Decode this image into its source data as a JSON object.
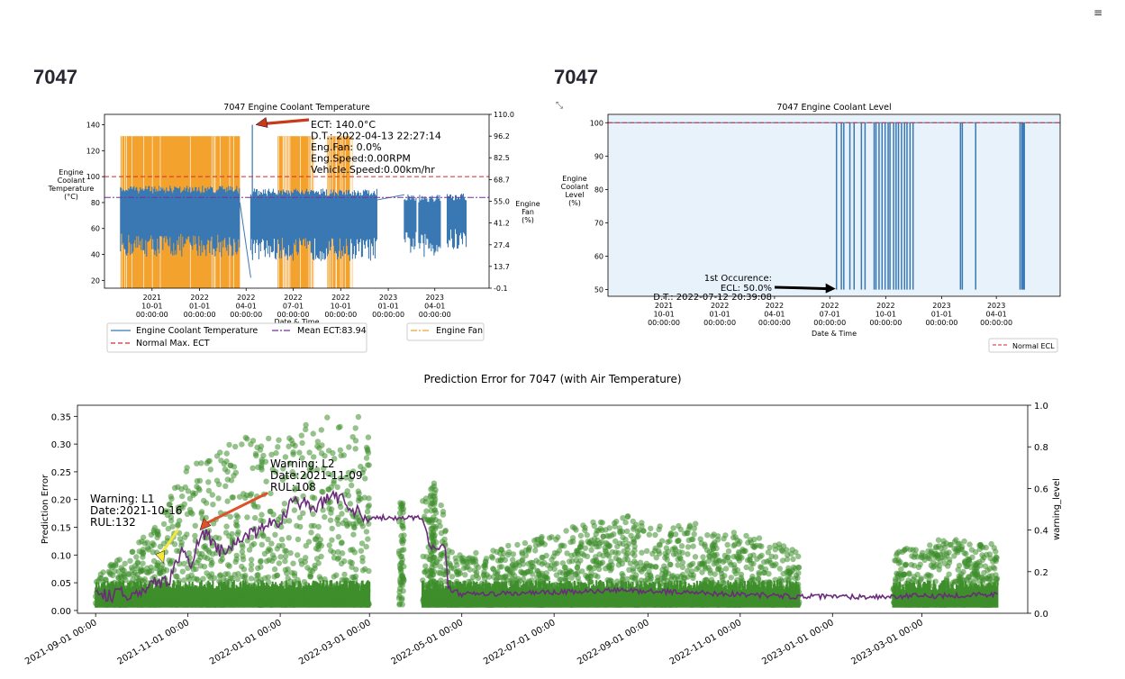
{
  "menu_icon": "≡",
  "left_panel": {
    "header": "7047",
    "chart_data": {
      "type": "line",
      "title": "7047 Engine Coolant Temperature",
      "ylabel": [
        "Engine",
        "Coolant",
        "Temperature",
        "(°C)"
      ],
      "y2label": [
        "Engine",
        "Fan",
        "(%)"
      ],
      "xlabel": "Date & Time",
      "ylim": [
        14,
        148
      ],
      "y2lim": [
        -0.1,
        110.0
      ],
      "yticks": [
        20,
        40,
        60,
        80,
        100,
        120,
        140
      ],
      "y2ticks": [
        "-0.1",
        "13.7",
        "27.4",
        "41.2",
        "55.0",
        "68.7",
        "82.5",
        "96.2",
        "110.0"
      ],
      "xlim": [
        "2021-07-01",
        "2023-07-15"
      ],
      "xticks": [
        {
          "date": "2021-10-01",
          "label": [
            "2021",
            "10-01",
            "00:00:00"
          ]
        },
        {
          "date": "2022-01-01",
          "label": [
            "2022",
            "01-01",
            "00:00:00"
          ]
        },
        {
          "date": "2022-04-01",
          "label": [
            "2022",
            "04-01",
            "00:00:00"
          ]
        },
        {
          "date": "2022-07-01",
          "label": [
            "2022",
            "07-01",
            "00:00:00"
          ]
        },
        {
          "date": "2022-10-01",
          "label": [
            "2022",
            "10-01",
            "00:00:00"
          ]
        },
        {
          "date": "2023-01-01",
          "label": [
            "2023",
            "01-01",
            "00:00:00"
          ]
        },
        {
          "date": "2023-04-01",
          "label": [
            "2023",
            "04-01",
            "00:00:00"
          ]
        }
      ],
      "normal_max_ect": 100,
      "mean_ect": 83.94,
      "series": [
        {
          "name": "Engine Coolant Temperature",
          "color": "#3a78b4",
          "segments": [
            {
              "start": "2021-08-01",
              "end": "2022-03-20",
              "low": 38,
              "high": 93
            },
            {
              "start": "2022-04-10",
              "end": "2022-12-10",
              "low": 35,
              "high": 91
            },
            {
              "start": "2023-02-01",
              "end": "2023-02-25",
              "low": 40,
              "high": 87
            },
            {
              "start": "2023-03-01",
              "end": "2023-04-12",
              "low": 38,
              "high": 86
            },
            {
              "start": "2023-04-25",
              "end": "2023-06-01",
              "low": 42,
              "high": 87
            }
          ]
        },
        {
          "name": "Engine Fan",
          "color": "#f4a22e",
          "blocks": [
            {
              "start": "2021-08-01",
              "end": "2022-03-20",
              "value": 96.2
            },
            {
              "start": "2022-06-01",
              "end": "2022-08-10",
              "value": 96.2
            },
            {
              "start": "2022-09-05",
              "end": "2022-10-25",
              "value": 96.2
            }
          ]
        }
      ],
      "annotation": {
        "date": "2022-04-13",
        "value": 140.0,
        "lines": [
          "ECT: 140.0°C",
          "D.T.: 2022-04-13 22:27:14",
          "Eng.Fan: 0.0%",
          "Eng.Speed:0.00RPM",
          "Vehicle.Speed:0.00km/hr"
        ]
      },
      "legend": [
        {
          "label": "Engine Coolant Temperature",
          "color": "#3a78b4",
          "style": "solid"
        },
        {
          "label": "Mean ECT:83.94",
          "color": "#7b2d9a",
          "style": "dashdot"
        },
        {
          "label": "Normal Max. ECT",
          "color": "#d62728",
          "style": "dashed"
        },
        {
          "label": "Engine Fan",
          "color": "#f4a22e",
          "style": "dashdot"
        }
      ]
    }
  },
  "right_panel": {
    "header": "7047",
    "expand_icon": "⤡",
    "chart_data": {
      "type": "line",
      "title": "7047 Engine Coolant Level",
      "ylabel": [
        "Engine",
        "Coolant",
        "Level",
        "(%)"
      ],
      "xlabel": "Date & Time",
      "ylim": [
        48,
        102.5
      ],
      "yticks": [
        50,
        60,
        70,
        80,
        90,
        100
      ],
      "xlim": [
        "2021-07-01",
        "2023-07-15"
      ],
      "xticks": [
        {
          "date": "2021-10-01",
          "label": [
            "2021",
            "10-01",
            "00:00:00"
          ]
        },
        {
          "date": "2022-01-01",
          "label": [
            "2022",
            "01-01",
            "00:00:00"
          ]
        },
        {
          "date": "2022-04-01",
          "label": [
            "2022",
            "04-01",
            "00:00:00"
          ]
        },
        {
          "date": "2022-07-01",
          "label": [
            "2022",
            "07-01",
            "00:00:00"
          ]
        },
        {
          "date": "2022-10-01",
          "label": [
            "2022",
            "10-01",
            "00:00:00"
          ]
        },
        {
          "date": "2023-01-01",
          "label": [
            "2023",
            "01-01",
            "00:00:00"
          ]
        },
        {
          "date": "2023-04-01",
          "label": [
            "2023",
            "04-01",
            "00:00:00"
          ]
        }
      ],
      "normal_ecl": 100,
      "baseline": 100,
      "drop_value": 50,
      "drop_dates": [
        "2022-07-12",
        "2022-07-20",
        "2022-07-24",
        "2022-08-03",
        "2022-08-10",
        "2022-08-22",
        "2022-08-28",
        "2022-09-12",
        "2022-09-15",
        "2022-09-20",
        "2022-09-25",
        "2022-09-30",
        "2022-10-05",
        "2022-10-08",
        "2022-10-14",
        "2022-10-18",
        "2022-10-22",
        "2022-10-27",
        "2022-11-01",
        "2022-11-05",
        "2022-11-10",
        "2022-11-15",
        "2023-02-01",
        "2023-02-04",
        "2023-02-26",
        "2023-05-10",
        "2023-05-13",
        "2023-05-15",
        "2023-05-17"
      ],
      "fill_color": "#e8f2fb",
      "line_color": "#3a78b4",
      "annotation": {
        "lines": [
          "1st Occurence:",
          "ECL: 50.0%",
          "D.T.: 2022-07-12 20:39:08"
        ],
        "date": "2022-07-12",
        "value": 50.0
      },
      "legend": [
        {
          "label": "Normal ECL",
          "color": "#d62728",
          "style": "dashed"
        }
      ]
    }
  },
  "bottom_panel": {
    "chart_data": {
      "type": "scatter",
      "title": "Prediction Error for 7047 (with Air Temperature)",
      "ylabel": "Prediction Error",
      "y2label": "warning_level",
      "ylim": [
        -0.005,
        0.37
      ],
      "y2lim": [
        0.0,
        1.0
      ],
      "yticks": [
        "0.00",
        "0.05",
        "0.10",
        "0.15",
        "0.20",
        "0.25",
        "0.30",
        "0.35"
      ],
      "y2ticks": [
        "0.0",
        "0.2",
        "0.4",
        "0.6",
        "0.8",
        "1.0"
      ],
      "xlim": [
        "2021-08-20",
        "2023-05-10"
      ],
      "xticks": [
        {
          "date": "2021-09-01",
          "label": "2021-09-01 00:00"
        },
        {
          "date": "2021-11-01",
          "label": "2021-11-01 00:00"
        },
        {
          "date": "2022-01-01",
          "label": "2022-01-01 00:00"
        },
        {
          "date": "2022-03-01",
          "label": "2022-03-01 00:00"
        },
        {
          "date": "2022-05-01",
          "label": "2022-05-01 00:00"
        },
        {
          "date": "2022-07-01",
          "label": "2022-07-01 00:00"
        },
        {
          "date": "2022-09-01",
          "label": "2022-09-01 00:00"
        },
        {
          "date": "2022-11-01",
          "label": "2022-11-01 00:00"
        },
        {
          "date": "2023-01-01",
          "label": "2023-01-01 00:00"
        },
        {
          "date": "2023-03-01",
          "label": "2023-03-01 00:00"
        }
      ],
      "scatter_color": "#3e8e2c",
      "warning_color": "#6a2c7a",
      "scatter_envelope": [
        [
          "2021-09-01",
          0.05
        ],
        [
          "2021-10-01",
          0.12
        ],
        [
          "2021-10-15",
          0.17
        ],
        [
          "2021-11-01",
          0.26
        ],
        [
          "2021-11-15",
          0.26
        ],
        [
          "2021-12-01",
          0.3
        ],
        [
          "2022-01-01",
          0.31
        ],
        [
          "2022-02-01",
          0.34
        ],
        [
          "2022-02-28",
          0.34
        ],
        [
          "2022-04-05",
          0.2
        ],
        [
          "2022-04-15",
          0.22
        ],
        [
          "2022-04-22",
          0.1
        ],
        [
          "2022-05-01",
          0.09
        ],
        [
          "2022-07-01",
          0.13
        ],
        [
          "2022-08-15",
          0.17
        ],
        [
          "2022-09-01",
          0.14
        ],
        [
          "2022-10-01",
          0.15
        ],
        [
          "2022-11-01",
          0.13
        ],
        [
          "2022-12-10",
          0.1
        ],
        [
          "2023-02-15",
          0.1
        ],
        [
          "2023-03-15",
          0.12
        ],
        [
          "2023-04-20",
          0.11
        ]
      ],
      "scatter_gaps": [
        [
          "2022-03-01",
          "2022-04-05"
        ],
        [
          "2022-12-10",
          "2023-02-10"
        ]
      ],
      "warning_level": [
        [
          "2021-09-01",
          0.08
        ],
        [
          "2021-09-20",
          0.09
        ],
        [
          "2021-10-10",
          0.14
        ],
        [
          "2021-10-20",
          0.17
        ],
        [
          "2021-10-28",
          0.3
        ],
        [
          "2021-11-03",
          0.22
        ],
        [
          "2021-11-10",
          0.4
        ],
        [
          "2021-11-25",
          0.28
        ],
        [
          "2021-12-10",
          0.38
        ],
        [
          "2022-01-01",
          0.45
        ],
        [
          "2022-01-10",
          0.55
        ],
        [
          "2022-01-25",
          0.5
        ],
        [
          "2022-02-05",
          0.58
        ],
        [
          "2022-02-15",
          0.52
        ],
        [
          "2022-02-28",
          0.46
        ],
        [
          "2022-04-05",
          0.46
        ],
        [
          "2022-04-10",
          0.32
        ],
        [
          "2022-04-20",
          0.32
        ],
        [
          "2022-04-22",
          0.12
        ],
        [
          "2022-05-01",
          0.09
        ],
        [
          "2022-07-01",
          0.1
        ],
        [
          "2022-08-15",
          0.11
        ],
        [
          "2022-10-01",
          0.1
        ],
        [
          "2022-12-10",
          0.08
        ],
        [
          "2023-02-10",
          0.08
        ],
        [
          "2023-04-20",
          0.09
        ]
      ],
      "annotations": [
        {
          "lines": [
            "Warning: L1",
            "Date:2021-10-16",
            "RUL:132"
          ],
          "date": "2021-10-16",
          "value": 0.085,
          "arrow_color": "#f5e83a"
        },
        {
          "lines": [
            "Warning: L2",
            "Date:2021-11-09",
            "RUL:108"
          ],
          "date": "2021-11-09",
          "value": 0.145,
          "arrow_color": "#e0502a"
        }
      ]
    }
  }
}
